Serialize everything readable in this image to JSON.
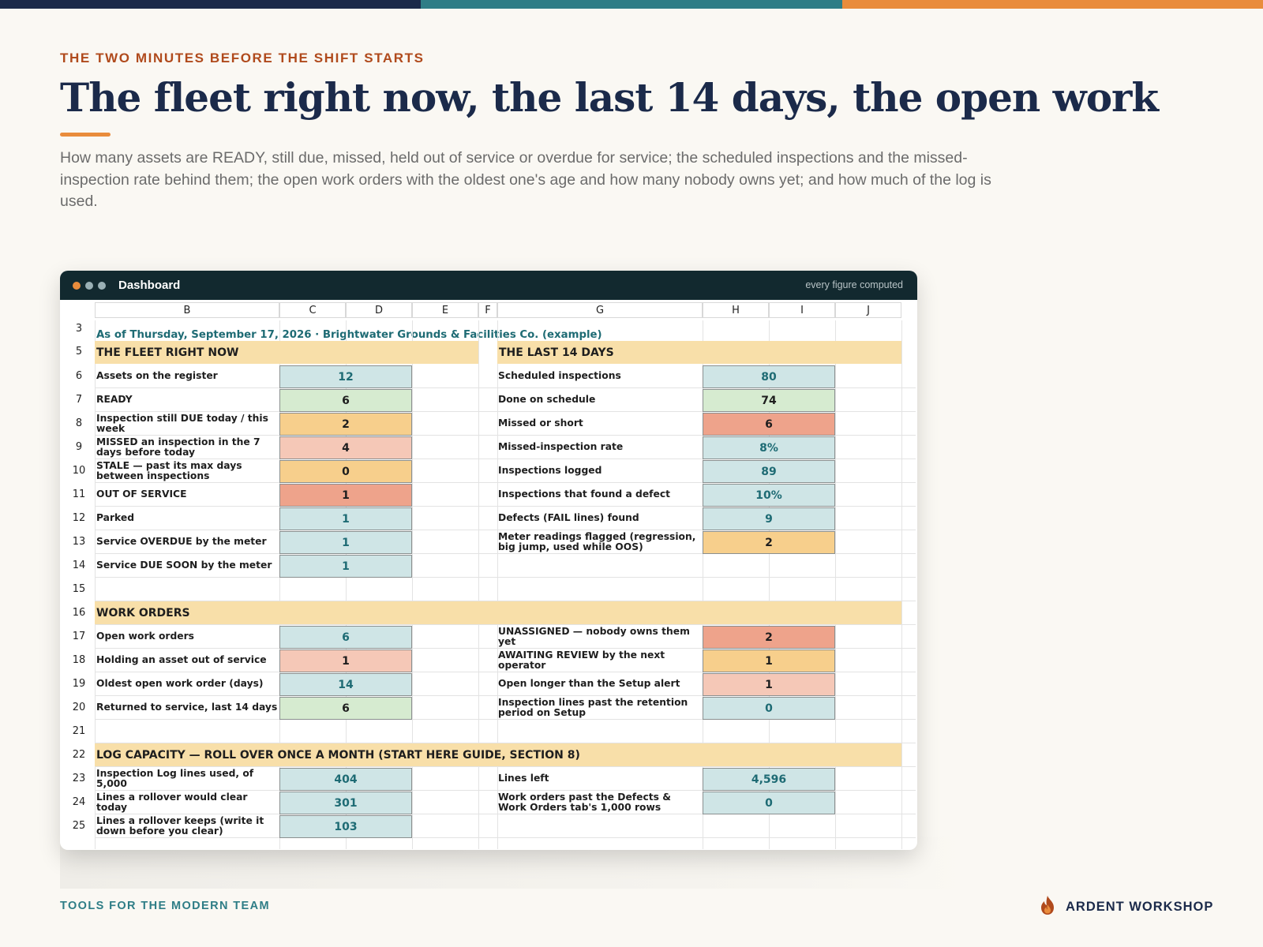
{
  "colors": {
    "navy": "#1b2a4a",
    "teal": "#2e7d86",
    "orange": "#e98c3c",
    "rust": "#b04a1c",
    "fill_blue": "#cfe5e6",
    "fill_green": "#d6ebd0",
    "fill_amber": "#f7cf8c",
    "fill_pink": "#f5c8b7",
    "fill_red": "#eea38b",
    "section": "#f8dfa9"
  },
  "eyebrow": "THE TWO MINUTES BEFORE THE SHIFT STARTS",
  "title": "The fleet right now, the last 14 days, the open work",
  "subtitle": "How many assets are READY, still due, missed, held out of service or overdue for service; the scheduled inspections and the missed-inspection rate behind them; the open work orders with the oldest one's age and how many nobody owns yet; and how much of the log is used.",
  "window": {
    "title": "Dashboard",
    "note": "every figure computed",
    "dots": [
      "#e98c3c",
      "#9ab0b5",
      "#9ab0b5"
    ]
  },
  "sheet": {
    "columns": [
      "B",
      "C",
      "D",
      "E",
      "F",
      "G",
      "H",
      "I",
      "J"
    ],
    "row_numbers": {
      "r3": "3",
      "r5": "5",
      "r6": "6",
      "r7": "7",
      "r8": "8",
      "r9": "9",
      "r10": "10",
      "r11": "11",
      "r12": "12",
      "r13": "13",
      "r14": "14",
      "r15": "15",
      "r16": "16",
      "r17": "17",
      "r18": "18",
      "r19": "19",
      "r20": "20",
      "r21": "21",
      "r22": "22",
      "r23": "23",
      "r24": "24",
      "r25": "25"
    },
    "as_of": "As of Thursday, September 17, 2026  ·  Brightwater Grounds & Facilities Co. (example)",
    "sections": {
      "fleet": "THE FLEET RIGHT NOW",
      "last14": "THE LAST 14 DAYS",
      "work_orders": "WORK ORDERS",
      "log": "LOG CAPACITY — ROLL OVER ONCE A MONTH (START HERE GUIDE, SECTION 8)"
    },
    "left": [
      {
        "label": "Assets on the register",
        "value": "12",
        "fill": "blue"
      },
      {
        "label": "READY",
        "value": "6",
        "fill": "green"
      },
      {
        "label": "Inspection still DUE today / this week",
        "value": "2",
        "fill": "amber"
      },
      {
        "label": "MISSED an inspection in the 7 days before today",
        "value": "4",
        "fill": "pink"
      },
      {
        "label": "STALE — past its max days between inspections",
        "value": "0",
        "fill": "amber"
      },
      {
        "label": "OUT OF SERVICE",
        "value": "1",
        "fill": "red"
      },
      {
        "label": "Parked",
        "value": "1",
        "fill": "blue"
      },
      {
        "label": "Service OVERDUE by the meter",
        "value": "1",
        "fill": "blue"
      },
      {
        "label": "Service DUE SOON by the meter",
        "value": "1",
        "fill": "blue"
      }
    ],
    "right": [
      {
        "label": "Scheduled inspections",
        "value": "80",
        "fill": "blue"
      },
      {
        "label": "Done on schedule",
        "value": "74",
        "fill": "green"
      },
      {
        "label": "Missed or short",
        "value": "6",
        "fill": "red"
      },
      {
        "label": "Missed-inspection rate",
        "value": "8%",
        "fill": "blue"
      },
      {
        "label": "Inspections logged",
        "value": "89",
        "fill": "blue"
      },
      {
        "label": "Inspections that found a defect",
        "value": "10%",
        "fill": "blue"
      },
      {
        "label": "Defects (FAIL lines) found",
        "value": "9",
        "fill": "blue"
      },
      {
        "label": "Meter readings flagged (regression, big jump, used while OOS)",
        "value": "2",
        "fill": "amber"
      }
    ],
    "wo_left": [
      {
        "label": "Open work orders",
        "value": "6",
        "fill": "blue"
      },
      {
        "label": "Holding an asset out of service",
        "value": "1",
        "fill": "pink"
      },
      {
        "label": "Oldest open work order (days)",
        "value": "14",
        "fill": "blue"
      },
      {
        "label": "Returned to service, last 14 days",
        "value": "6",
        "fill": "green"
      }
    ],
    "wo_right": [
      {
        "label": "UNASSIGNED — nobody owns them yet",
        "value": "2",
        "fill": "red"
      },
      {
        "label": "AWAITING REVIEW by the next operator",
        "value": "1",
        "fill": "amber"
      },
      {
        "label": "Open longer than the Setup alert",
        "value": "1",
        "fill": "pink"
      },
      {
        "label": "Inspection lines past the retention period on Setup",
        "value": "0",
        "fill": "blue"
      }
    ],
    "log_left": [
      {
        "label": "Inspection Log lines used, of 5,000",
        "value": "404",
        "fill": "blue"
      },
      {
        "label": "Lines a rollover would clear today",
        "value": "301",
        "fill": "blue"
      },
      {
        "label": "Lines a rollover keeps (write it down before you clear)",
        "value": "103",
        "fill": "blue"
      }
    ],
    "log_right": [
      {
        "label": "Lines left",
        "value": "4,596",
        "fill": "blue"
      },
      {
        "label": "Work orders past the Defects & Work Orders tab's 1,000 rows",
        "value": "0",
        "fill": "blue"
      }
    ]
  },
  "footer": {
    "left": "TOOLS FOR THE MODERN TEAM",
    "brand": "ARDENT WORKSHOP",
    "logo_icon": "flame-icon"
  }
}
